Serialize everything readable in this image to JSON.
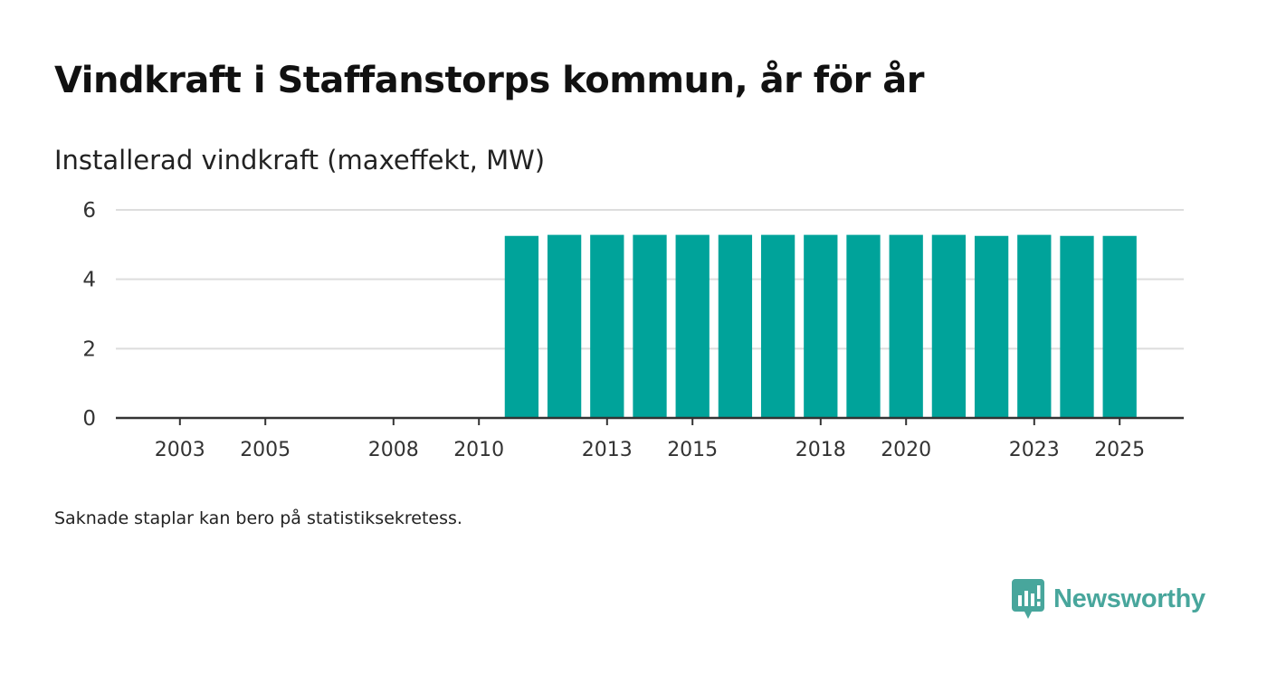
{
  "title": "Vindkraft i Staffanstorps kommun, år för år",
  "subtitle": "Installerad vindkraft (maxeffekt, MW)",
  "note": "Saknade staplar kan bero på statistiksekretess.",
  "brand": {
    "name": "Newsworthy",
    "icon": "newsworthy-logo-icon",
    "color": "#48a69c"
  },
  "colors": {
    "bar": "#00a39a",
    "grid": "#dddddd",
    "axis": "#333333"
  },
  "chart_data": {
    "type": "bar",
    "title": "Vindkraft i Staffanstorps kommun, år för år",
    "ylabel": "Installerad vindkraft (maxeffekt, MW)",
    "xlabel": "",
    "ylim": [
      0,
      6
    ],
    "yticks": [
      0,
      2,
      4,
      6
    ],
    "xlim": [
      2001.5,
      2026.5
    ],
    "xticks": [
      2003,
      2005,
      2008,
      2010,
      2013,
      2015,
      2018,
      2020,
      2023,
      2025
    ],
    "grid": true,
    "categories": [
      2011,
      2012,
      2013,
      2014,
      2015,
      2016,
      2017,
      2018,
      2019,
      2020,
      2021,
      2022,
      2023,
      2024,
      2025
    ],
    "values": [
      5.25,
      5.28,
      5.28,
      5.28,
      5.28,
      5.28,
      5.28,
      5.28,
      5.28,
      5.28,
      5.28,
      5.25,
      5.28,
      5.25,
      5.25
    ]
  }
}
